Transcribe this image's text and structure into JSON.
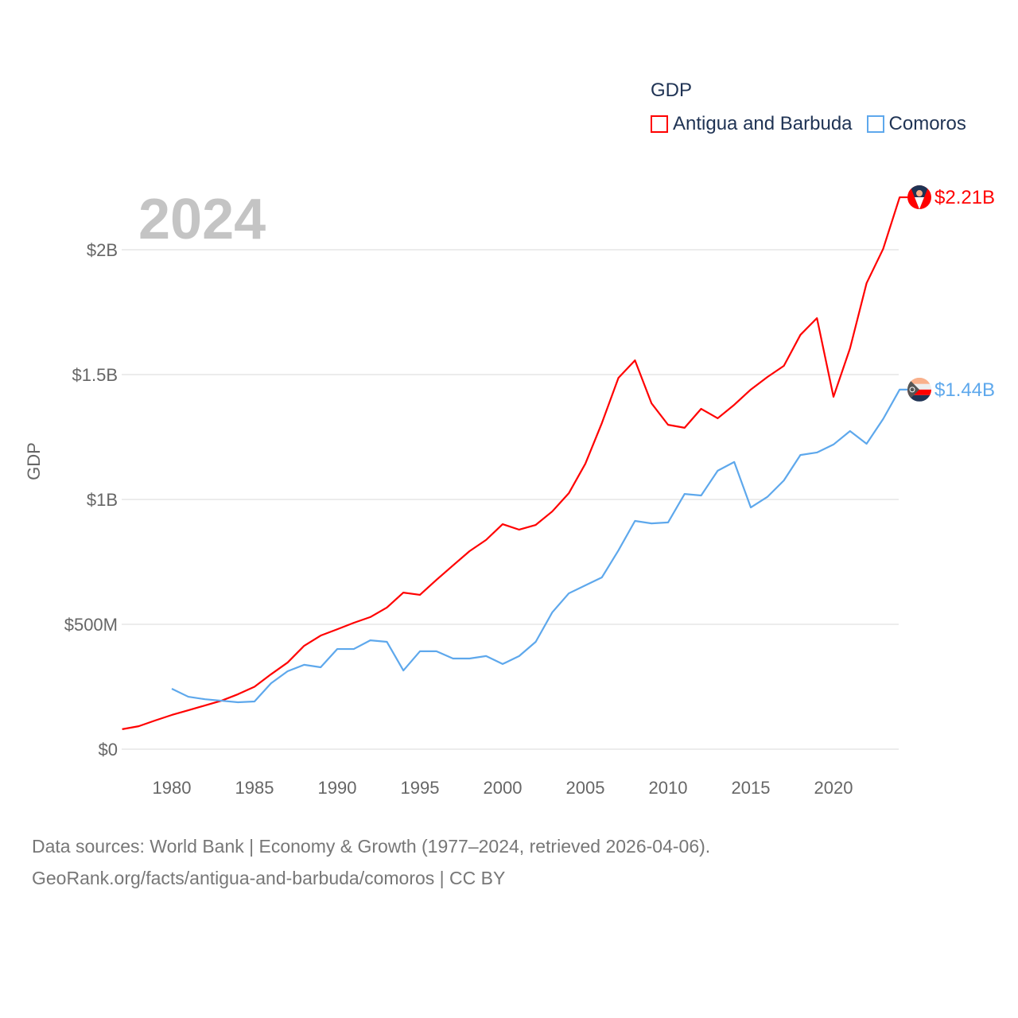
{
  "chart_data": {
    "type": "line",
    "title": "GDP",
    "year_label": "2024",
    "ylabel": "GDP",
    "xlabel": "",
    "xlim": [
      1977,
      2024
    ],
    "ylim": [
      0,
      2.0
    ],
    "grid": true,
    "legend_placement": "top-right",
    "x_ticks": [
      1980,
      1985,
      1990,
      1995,
      2000,
      2005,
      2010,
      2015,
      2020
    ],
    "y_ticks": [
      {
        "value": 0,
        "label": "$0"
      },
      {
        "value": 0.5,
        "label": "$500M"
      },
      {
        "value": 1,
        "label": "$1B"
      },
      {
        "value": 1.5,
        "label": "$1.5B"
      },
      {
        "value": 2,
        "label": "$2B"
      }
    ],
    "units": "billions USD",
    "series": [
      {
        "name": "Antigua and Barbuda",
        "color": "#ff0000",
        "end_label": "$2.21B",
        "flag": "antigua-and-barbuda-flag",
        "x_start": 1977,
        "values": [
          0.08,
          0.092,
          0.115,
          0.137,
          0.156,
          0.175,
          0.194,
          0.22,
          0.25,
          0.3,
          0.347,
          0.414,
          0.455,
          0.48,
          0.506,
          0.529,
          0.567,
          0.627,
          0.618,
          0.678,
          0.736,
          0.793,
          0.838,
          0.901,
          0.879,
          0.898,
          0.952,
          1.025,
          1.143,
          1.306,
          1.487,
          1.557,
          1.385,
          1.299,
          1.287,
          1.363,
          1.325,
          1.379,
          1.44,
          1.49,
          1.535,
          1.659,
          1.726,
          1.411,
          1.605,
          1.866,
          2.003,
          2.21
        ]
      },
      {
        "name": "Comoros",
        "color": "#5ea8ec",
        "end_label": "$1.44B",
        "flag": "comoros-flag",
        "x_start": 1980,
        "values": [
          0.242,
          0.21,
          0.2,
          0.194,
          0.188,
          0.191,
          0.264,
          0.312,
          0.338,
          0.328,
          0.401,
          0.401,
          0.436,
          0.43,
          0.315,
          0.392,
          0.392,
          0.363,
          0.363,
          0.373,
          0.341,
          0.373,
          0.43,
          0.548,
          0.624,
          0.656,
          0.688,
          0.796,
          0.914,
          0.904,
          0.908,
          1.022,
          1.016,
          1.115,
          1.15,
          0.968,
          1.01,
          1.076,
          1.178,
          1.188,
          1.22,
          1.274,
          1.223,
          1.322,
          1.44
        ]
      }
    ]
  },
  "footer": {
    "line1": "Data sources: World Bank | Economy & Growth (1977–2024, retrieved 2026-04-06).",
    "line2": "GeoRank.org/facts/antigua-and-barbuda/comoros | CC BY"
  }
}
